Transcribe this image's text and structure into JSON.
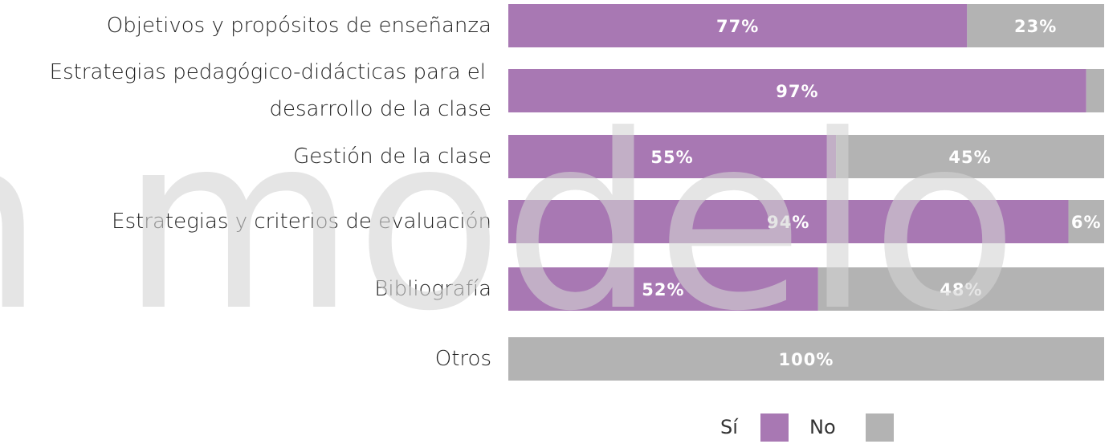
{
  "chart_data": {
    "type": "stacked-bar-horizontal",
    "watermark": "n modelo",
    "categories": [
      [
        "Objetivos y propósitos de enseñanza"
      ],
      [
        "Estrategias pedagógico-didácticas para el",
        "desarrollo de la clase"
      ],
      [
        "Gestión de la clase"
      ],
      [
        "Estrategias y criterios de evaluación"
      ],
      [
        "Bibliografía"
      ],
      [
        "Otros"
      ]
    ],
    "xlim": [
      0,
      100
    ],
    "series": [
      {
        "name": "Sí",
        "color": "#a878b3",
        "values": [
          77,
          97,
          55,
          94,
          52,
          0
        ],
        "value_labels": [
          "77%",
          "97%",
          "55%",
          "94%",
          "52%",
          null
        ]
      },
      {
        "name": "No",
        "color": "#b3b3b3",
        "values": [
          23,
          3,
          45,
          6,
          48,
          100
        ],
        "value_labels": [
          "23%",
          null,
          "45%",
          "6%",
          "48%",
          "100%"
        ]
      }
    ]
  }
}
